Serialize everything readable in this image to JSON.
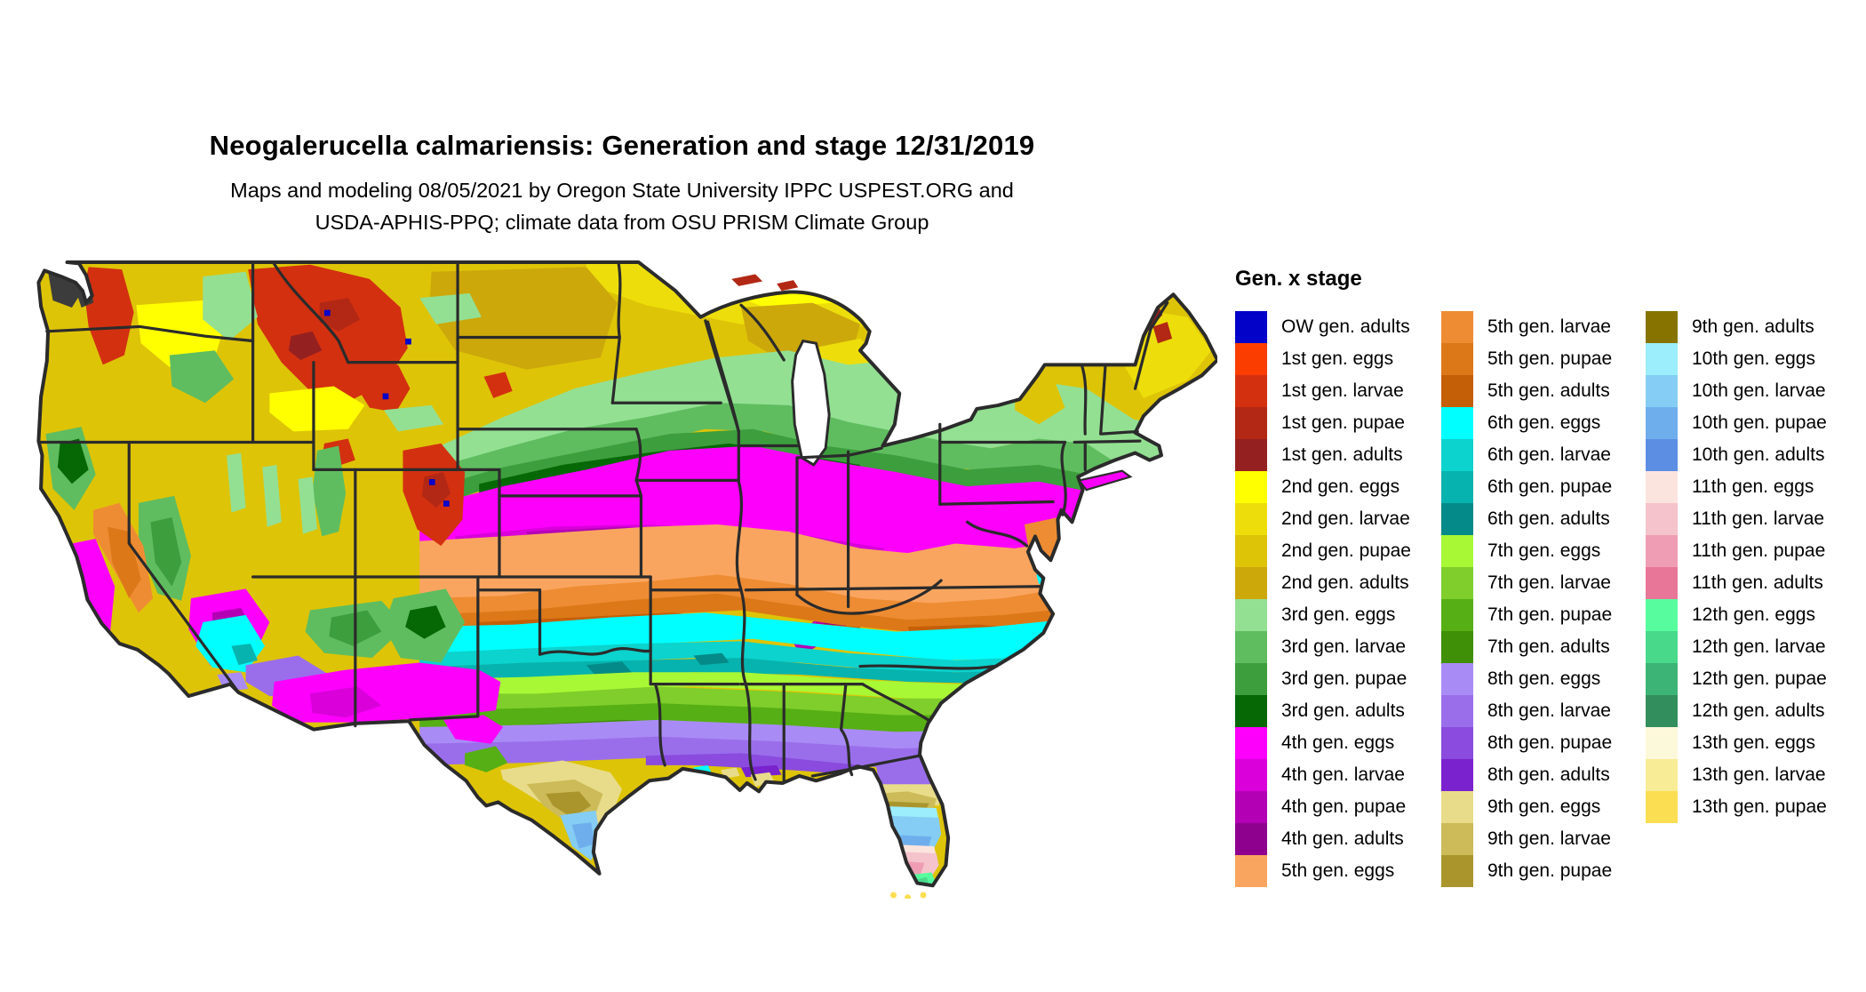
{
  "title": "Neogalerucella calmariensis: Generation and stage 12/31/2019",
  "subtitle_line1": "Maps and modeling 08/05/2021 by Oregon State University IPPC USPEST.ORG and",
  "subtitle_line2": "USDA-APHIS-PPQ; climate data from OSU PRISM Climate Group",
  "legend": {
    "title": "Gen. x stage",
    "columns": [
      [
        {
          "label": "OW gen. adults",
          "color": "#0202C8"
        },
        {
          "label": "1st gen. eggs",
          "color": "#FC3D00"
        },
        {
          "label": "1st gen. larvae",
          "color": "#D33010"
        },
        {
          "label": "1st gen. pupae",
          "color": "#B22814"
        },
        {
          "label": "1st gen. adults",
          "color": "#952020"
        },
        {
          "label": "2nd gen. eggs",
          "color": "#FFFF00"
        },
        {
          "label": "2nd gen. larvae",
          "color": "#EDDE0B"
        },
        {
          "label": "2nd gen. pupae",
          "color": "#DEC407"
        },
        {
          "label": "2nd gen. adults",
          "color": "#CCA80B"
        },
        {
          "label": "3rd gen. eggs",
          "color": "#93E093"
        },
        {
          "label": "3rd gen. larvae",
          "color": "#5FBD5F"
        },
        {
          "label": "3rd gen. pupae",
          "color": "#3D9E3D"
        },
        {
          "label": "3rd gen. adults",
          "color": "#056805"
        },
        {
          "label": "4th gen. eggs",
          "color": "#FC00FC"
        },
        {
          "label": "4th gen. larvae",
          "color": "#D900D9"
        },
        {
          "label": "4th gen. pupae",
          "color": "#B400B4"
        },
        {
          "label": "4th gen. adults",
          "color": "#8E008E"
        },
        {
          "label": "5th gen. eggs",
          "color": "#FAA55F"
        }
      ],
      [
        {
          "label": "5th gen. larvae",
          "color": "#EE8C33"
        },
        {
          "label": "5th gen. pupae",
          "color": "#DC7818"
        },
        {
          "label": "5th gen. adults",
          "color": "#C55F07"
        },
        {
          "label": "6th gen. eggs",
          "color": "#00FFFF"
        },
        {
          "label": "6th gen. larvae",
          "color": "#0CD3CD"
        },
        {
          "label": "6th gen. pupae",
          "color": "#07B3AE"
        },
        {
          "label": "6th gen. adults",
          "color": "#048A88"
        },
        {
          "label": "7th gen. eggs",
          "color": "#A8F835"
        },
        {
          "label": "7th gen. larvae",
          "color": "#7FCE2B"
        },
        {
          "label": "7th gen. pupae",
          "color": "#56AF14"
        },
        {
          "label": "7th gen. adults",
          "color": "#3F8F07"
        },
        {
          "label": "8th gen. eggs",
          "color": "#A98BF5"
        },
        {
          "label": "8th gen. larvae",
          "color": "#9A6EEB"
        },
        {
          "label": "8th gen. pupae",
          "color": "#8A4BDE"
        },
        {
          "label": "8th gen. adults",
          "color": "#7A22CE"
        },
        {
          "label": "9th gen. eggs",
          "color": "#E8DC8A"
        },
        {
          "label": "9th gen. larvae",
          "color": "#CCBB58"
        },
        {
          "label": "9th gen. pupae",
          "color": "#A9952C"
        }
      ],
      [
        {
          "label": "9th gen. adults",
          "color": "#877400"
        },
        {
          "label": "10th gen. eggs",
          "color": "#9CEEFC"
        },
        {
          "label": "10th gen. larvae",
          "color": "#85CDF4"
        },
        {
          "label": "10th gen. pupae",
          "color": "#6FAEEC"
        },
        {
          "label": "10th gen. adults",
          "color": "#5C8EE4"
        },
        {
          "label": "11th gen. eggs",
          "color": "#FCE4DE"
        },
        {
          "label": "11th gen. larvae",
          "color": "#F4C3CC"
        },
        {
          "label": "11th gen. pupae",
          "color": "#EF9DB4"
        },
        {
          "label": "11th gen. adults",
          "color": "#E77698"
        },
        {
          "label": "12th gen. eggs",
          "color": "#57FC9E"
        },
        {
          "label": "12th gen. larvae",
          "color": "#48D98A"
        },
        {
          "label": "12th gen. pupae",
          "color": "#3CB475"
        },
        {
          "label": "12th gen. adults",
          "color": "#338E5D"
        },
        {
          "label": "13th gen. eggs",
          "color": "#FCF8DA"
        },
        {
          "label": "13th gen. larvae",
          "color": "#F8EC96"
        },
        {
          "label": "13th gen. pupae",
          "color": "#FCDE52"
        }
      ]
    ]
  },
  "map": {
    "region": "Continental United States",
    "water_color": "#FFFFFF",
    "nodata_color": "#3C3C3C",
    "state_border_color": "#2B2B2B"
  }
}
